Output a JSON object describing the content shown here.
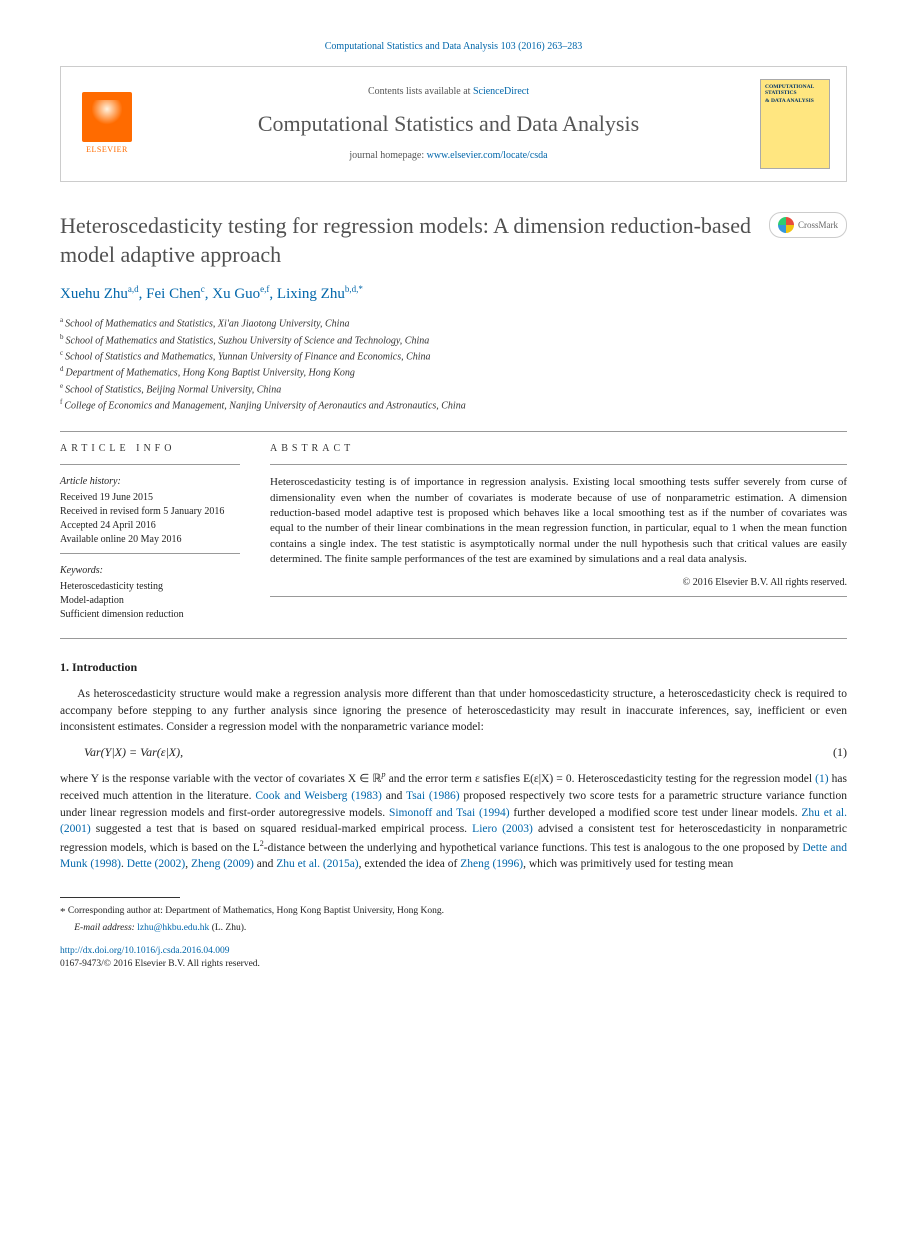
{
  "citation": "Computational Statistics and Data Analysis 103 (2016) 263–283",
  "header": {
    "contents_prefix": "Contents lists available at ",
    "contents_link": "ScienceDirect",
    "journal_name": "Computational Statistics and Data Analysis",
    "homepage_prefix": "journal homepage: ",
    "homepage_url": "www.elsevier.com/locate/csda",
    "publisher": "ELSEVIER",
    "cover_line1": "COMPUTATIONAL STATISTICS",
    "cover_line2": "& DATA ANALYSIS"
  },
  "title": "Heteroscedasticity testing for regression models: A dimension reduction-based model adaptive approach",
  "crossmark_label": "CrossMark",
  "authors": [
    {
      "name": "Xuehu Zhu",
      "aff": "a,d"
    },
    {
      "name": "Fei Chen",
      "aff": "c"
    },
    {
      "name": "Xu Guo",
      "aff": "e,f"
    },
    {
      "name": "Lixing Zhu",
      "aff": "b,d,",
      "corr": true
    }
  ],
  "affiliations": [
    {
      "key": "a",
      "text": "School of Mathematics and Statistics, Xi'an Jiaotong University, China"
    },
    {
      "key": "b",
      "text": "School of Mathematics and Statistics, Suzhou University of Science and Technology, China"
    },
    {
      "key": "c",
      "text": "School of Statistics and Mathematics, Yunnan University of Finance and Economics, China"
    },
    {
      "key": "d",
      "text": "Department of Mathematics, Hong Kong Baptist University, Hong Kong"
    },
    {
      "key": "e",
      "text": "School of Statistics, Beijing Normal University, China"
    },
    {
      "key": "f",
      "text": "College of Economics and Management, Nanjing University of Aeronautics and Astronautics, China"
    }
  ],
  "article_info": {
    "heading": "ARTICLE INFO",
    "history_label": "Article history:",
    "history": [
      "Received 19 June 2015",
      "Received in revised form 5 January 2016",
      "Accepted 24 April 2016",
      "Available online 20 May 2016"
    ],
    "keywords_label": "Keywords:",
    "keywords": [
      "Heteroscedasticity testing",
      "Model-adaption",
      "Sufficient dimension reduction"
    ]
  },
  "abstract": {
    "heading": "ABSTRACT",
    "text": "Heteroscedasticity testing is of importance in regression analysis. Existing local smoothing tests suffer severely from curse of dimensionality even when the number of covariates is moderate because of use of nonparametric estimation. A dimension reduction-based model adaptive test is proposed which behaves like a local smoothing test as if the number of covariates was equal to the number of their linear combinations in the mean regression function, in particular, equal to 1 when the mean function contains a single index. The test statistic is asymptotically normal under the null hypothesis such that critical values are easily determined. The finite sample performances of the test are examined by simulations and a real data analysis.",
    "copyright": "© 2016 Elsevier B.V. All rights reserved."
  },
  "intro": {
    "heading": "1.  Introduction",
    "para1": "As heteroscedasticity structure would make a regression analysis more different than that under homoscedasticity structure, a heteroscedasticity check is required to accompany before stepping to any further analysis since ignoring the presence of heteroscedasticity may result in inaccurate inferences, say, inefficient or even inconsistent estimates. Consider a regression model with the nonparametric variance model:",
    "equation": "Var(Y|X) = Var(ε|X),",
    "equation_num": "(1)",
    "para2_a": "where Y is the response variable with the vector of covariates X ∈ ℝ",
    "para2_b": " and the error term ε satisfies E(ε|X) = 0. Heteroscedasticity testing for the regression model ",
    "para2_c": " has received much attention in the literature. ",
    "para2_d": " and ",
    "para2_e": " proposed respectively two score tests for a parametric structure variance function under linear regression models and first-order autoregressive models. ",
    "para2_f": " further developed a modified score test under linear models. ",
    "para2_g": " suggested a test that is based on squared residual-marked empirical process. ",
    "para2_h": " advised a consistent test for heteroscedasticity in nonparametric regression models, which is based on the L",
    "para2_i": "-distance between the underlying and hypothetical variance functions. This test is analogous to the one proposed by ",
    "para2_j": ". ",
    "para2_k": ", ",
    "para2_l": " and ",
    "para2_m": ", extended the idea of ",
    "para2_n": ", which was primitively used for testing mean",
    "ref_eq1": "(1)",
    "ref_cook": "Cook and Weisberg (1983)",
    "ref_tsai": "Tsai (1986)",
    "ref_simonoff": "Simonoff and Tsai (1994)",
    "ref_zhu2001": "Zhu et al. (2001)",
    "ref_liero": "Liero (2003)",
    "ref_dettemunk": "Dette and Munk (1998)",
    "ref_dette2002": "Dette (2002)",
    "ref_zheng2009": "Zheng (2009)",
    "ref_zhu2015": "Zhu et al. (2015a)",
    "ref_zheng1996": "Zheng (1996)",
    "sup_p": "p",
    "sup_2": "2"
  },
  "footnote": {
    "corr": "Corresponding author at: Department of Mathematics, Hong Kong Baptist University, Hong Kong.",
    "email_label": "E-mail address: ",
    "email": "lzhu@hkbu.edu.hk",
    "email_who": " (L. Zhu)."
  },
  "doi": {
    "url": "http://dx.doi.org/10.1016/j.csda.2016.04.009",
    "issn_line": "0167-9473/© 2016 Elsevier B.V. All rights reserved."
  },
  "colors": {
    "link": "#0066aa",
    "elsevier_orange": "#ff6b00",
    "title_gray": "#505050"
  }
}
